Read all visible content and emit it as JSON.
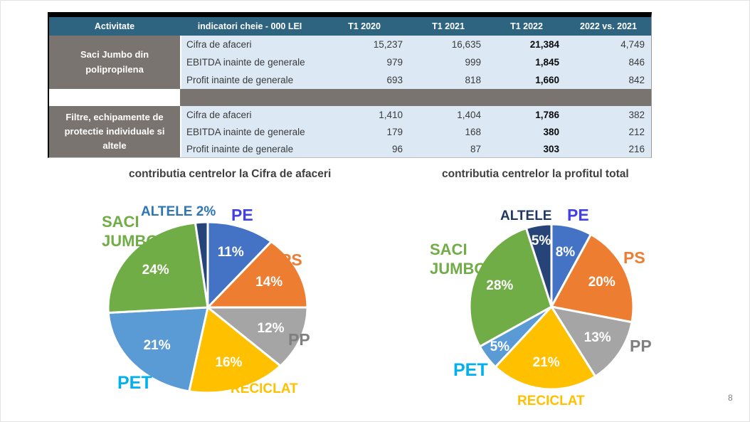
{
  "page": {
    "number": "8"
  },
  "table": {
    "columns": [
      "Activitate",
      "indicatori cheie - 000 LEI",
      "T1 2020",
      "T1 2021",
      "T1 2022",
      "2022 vs. 2021"
    ],
    "groups": [
      {
        "activity": "Saci Jumbo din polipropilena",
        "rows": [
          {
            "indicator": "Cifra de afaceri",
            "values": [
              "15,237",
              "16,635",
              "21,384",
              "4,749"
            ]
          },
          {
            "indicator": "EBITDA inainte de generale",
            "values": [
              "979",
              "999",
              "1,845",
              "846"
            ]
          },
          {
            "indicator": "Profit inainte de generale",
            "values": [
              "693",
              "818",
              "1,660",
              "842"
            ]
          }
        ]
      },
      {
        "activity": "Filtre, echipamente de protectie individuale si altele",
        "rows": [
          {
            "indicator": "Cifra de afaceri",
            "values": [
              "1,410",
              "1,404",
              "1,786",
              "382"
            ]
          },
          {
            "indicator": "EBITDA inainte de generale",
            "values": [
              "179",
              "168",
              "380",
              "212"
            ]
          },
          {
            "indicator": "Profit inainte de generale",
            "values": [
              "96",
              "87",
              "303",
              "216"
            ]
          }
        ]
      }
    ]
  },
  "chart_data": [
    {
      "type": "pie",
      "title": "contributia centrelor la Cifra de afaceri",
      "categories": [
        "PE",
        "PS",
        "PP",
        "RECICLAT",
        "PET",
        "SACI JUMBO",
        "ALTELE"
      ],
      "values": [
        11,
        14,
        12,
        16,
        21,
        24,
        2
      ],
      "value_labels": [
        "11%",
        "14%",
        "12%",
        "16%",
        "21%",
        "24%",
        "2%"
      ],
      "unit": "%",
      "start_angle_deg": 0,
      "direction": "clockwise",
      "slice_colors": [
        "#4472C4",
        "#ED7D31",
        "#A5A5A5",
        "#FFC000",
        "#5B9BD5",
        "#70AD47",
        "#264478"
      ],
      "label_colors": [
        "#4141E3",
        "#ED7D31",
        "#7F7F7F",
        "#FFC000",
        "#00B0F0",
        "#70AD47",
        "#2E75B6"
      ],
      "inside_labels": [
        true,
        true,
        true,
        true,
        true,
        true,
        false
      ],
      "legend_position": "labels-around-pie"
    },
    {
      "type": "pie",
      "title": "contributia centrelor la profitul total",
      "categories": [
        "PE",
        "PS",
        "PP",
        "RECICLAT",
        "PET",
        "SACI JUMBO",
        "ALTELE"
      ],
      "values": [
        8,
        20,
        13,
        21,
        5,
        28,
        5
      ],
      "value_labels": [
        "8%",
        "20%",
        "13%",
        "21%",
        "5%",
        "28%",
        "5%"
      ],
      "unit": "%",
      "start_angle_deg": 0,
      "direction": "clockwise",
      "slice_colors": [
        "#4472C4",
        "#ED7D31",
        "#A5A5A5",
        "#FFC000",
        "#5B9BD5",
        "#70AD47",
        "#264478"
      ],
      "label_colors": [
        "#4141E3",
        "#ED7D31",
        "#7F7F7F",
        "#FFC000",
        "#00B0F0",
        "#70AD47",
        "#1F3864"
      ],
      "inside_labels": [
        true,
        true,
        true,
        true,
        true,
        true,
        true
      ],
      "legend_position": "labels-around-pie"
    }
  ]
}
